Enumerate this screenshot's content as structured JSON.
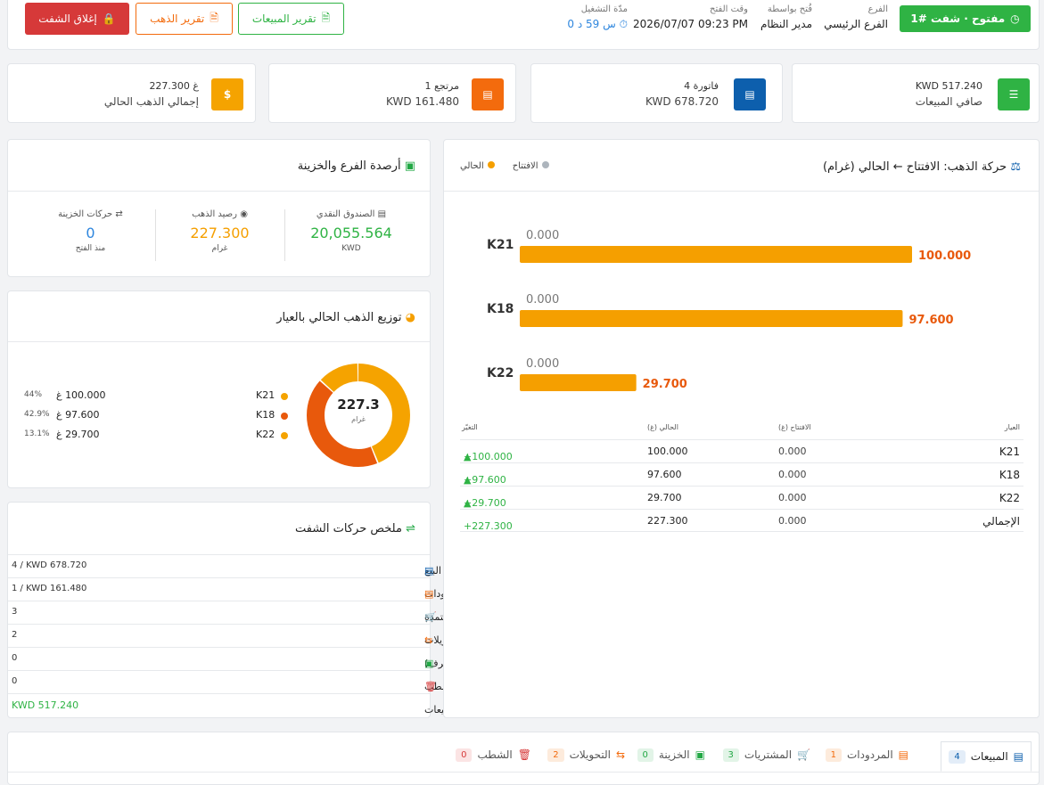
{
  "header": {
    "status_badge": "مفتوح · شفت #1",
    "branch": {
      "label": "الفرع",
      "value": "الفرع الرئيسي"
    },
    "opened_by": {
      "label": "فُتح بواسطة",
      "value": "مدير النظام"
    },
    "opened_at": {
      "label": "وقت الفتح",
      "value": "2026/07/07 09:23 PM"
    },
    "duration": {
      "label": "مدّة التشغيل",
      "value": "0 س 59 د"
    },
    "sales_report": "تقرير المبيعات",
    "gold_report": "تقرير الذهب",
    "close_shift": "إغلاق الشفت"
  },
  "stats": [
    {
      "top": "KWD 517.240",
      "bottom": "صافي المبيعات",
      "color": "#2fb344"
    },
    {
      "top": "4 فاتورة",
      "bottom": "KWD 678.720",
      "color": "#0d5fad"
    },
    {
      "top": "1 مرتجع",
      "bottom": "KWD 161.480",
      "color": "#f36b0d"
    },
    {
      "top": "227.300 غ",
      "bottom": "إجمالي الذهب الحالي",
      "color": "#f5a300"
    }
  ],
  "balances": {
    "title": "أرصدة الفرع والخزينة",
    "cash": {
      "label": "الصندوق النقدي",
      "value": "20,055.564",
      "unit": "KWD"
    },
    "gold": {
      "label": "رصيد الذهب",
      "value": "227.300",
      "unit": "غرام"
    },
    "treasury": {
      "label": "حركات الخزينة",
      "value": "0",
      "unit": "منذ الفتح"
    }
  },
  "distribution": {
    "title": "توزيع الذهب الحالي بالعيار",
    "center_value": "227.3",
    "center_unit": "غرام",
    "items": [
      {
        "karat": "K21",
        "value": "100.000 غ",
        "pct": "44%",
        "color": "#f5a300",
        "share": 0.44
      },
      {
        "karat": "K18",
        "value": "97.600 غ",
        "pct": "42.9%",
        "color": "#e8590c",
        "share": 0.429
      },
      {
        "karat": "K22",
        "value": "29.700 غ",
        "pct": "13.1%",
        "color": "#f5a300",
        "share": 0.131
      }
    ]
  },
  "summary": {
    "title": "ملخص حركات الشفت",
    "rows": [
      {
        "label": "فواتير البيع",
        "value": "4 / KWD 678.720",
        "icon_color": "#0d5fad"
      },
      {
        "label": "المردودات",
        "value": "1 / KWD 161.480",
        "icon_color": "#f36b0d"
      },
      {
        "label": "مشتريات معتمدة",
        "value": "3",
        "icon_color": "#22a845"
      },
      {
        "label": "تحويلات",
        "value": "2",
        "icon_color": "#f36b0d"
      },
      {
        "label": "حركات الخزينة (إيداع/صرف)",
        "value": "0",
        "icon_color": "#22a845"
      },
      {
        "label": "شطب",
        "value": "0",
        "icon_color": "#d63939"
      },
      {
        "label": "صافي المبيعات",
        "value": "KWD 517.240",
        "icon_color": ""
      }
    ]
  },
  "gold_movement": {
    "title": "حركة الذهب: الافتتاح ← الحالي (غرام)",
    "legend_open": "الافتتاح",
    "legend_current": "الحالي",
    "table_headers": {
      "karat": "العيار",
      "open": "الافتتاح (غ)",
      "current": "الحالي (غ)",
      "change": "التغيّر"
    },
    "table_rows": [
      {
        "karat": "K21",
        "open": "0.000",
        "current": "100.000",
        "change": "+100.000"
      },
      {
        "karat": "K18",
        "open": "0.000",
        "current": "97.600",
        "change": "+97.600"
      },
      {
        "karat": "K22",
        "open": "0.000",
        "current": "29.700",
        "change": "+29.700"
      },
      {
        "karat": "الإجمالي",
        "open": "0.000",
        "current": "227.300",
        "change": "+227.300"
      }
    ]
  },
  "chart_data": {
    "type": "bar",
    "categories": [
      "K21",
      "K18",
      "K22"
    ],
    "series": [
      {
        "name": "الافتتاح",
        "values": [
          0,
          0,
          0
        ],
        "labels": [
          "0.000",
          "0.000",
          "0.000"
        ],
        "color": "#adb5bd"
      },
      {
        "name": "الحالي",
        "values": [
          100,
          97.6,
          29.7
        ],
        "labels": [
          "100.000",
          "97.600",
          "29.700"
        ],
        "color": "#f59f00"
      }
    ],
    "orientation": "horizontal",
    "xlim": [
      0,
      100
    ]
  },
  "tabs": [
    {
      "label": "المبيعات",
      "count": "4"
    },
    {
      "label": "المردودات",
      "count": "1"
    },
    {
      "label": "المشتريات",
      "count": "3"
    },
    {
      "label": "الخزينة",
      "count": "0"
    },
    {
      "label": "التحويلات",
      "count": "2"
    },
    {
      "label": "الشطب",
      "count": "0"
    }
  ]
}
